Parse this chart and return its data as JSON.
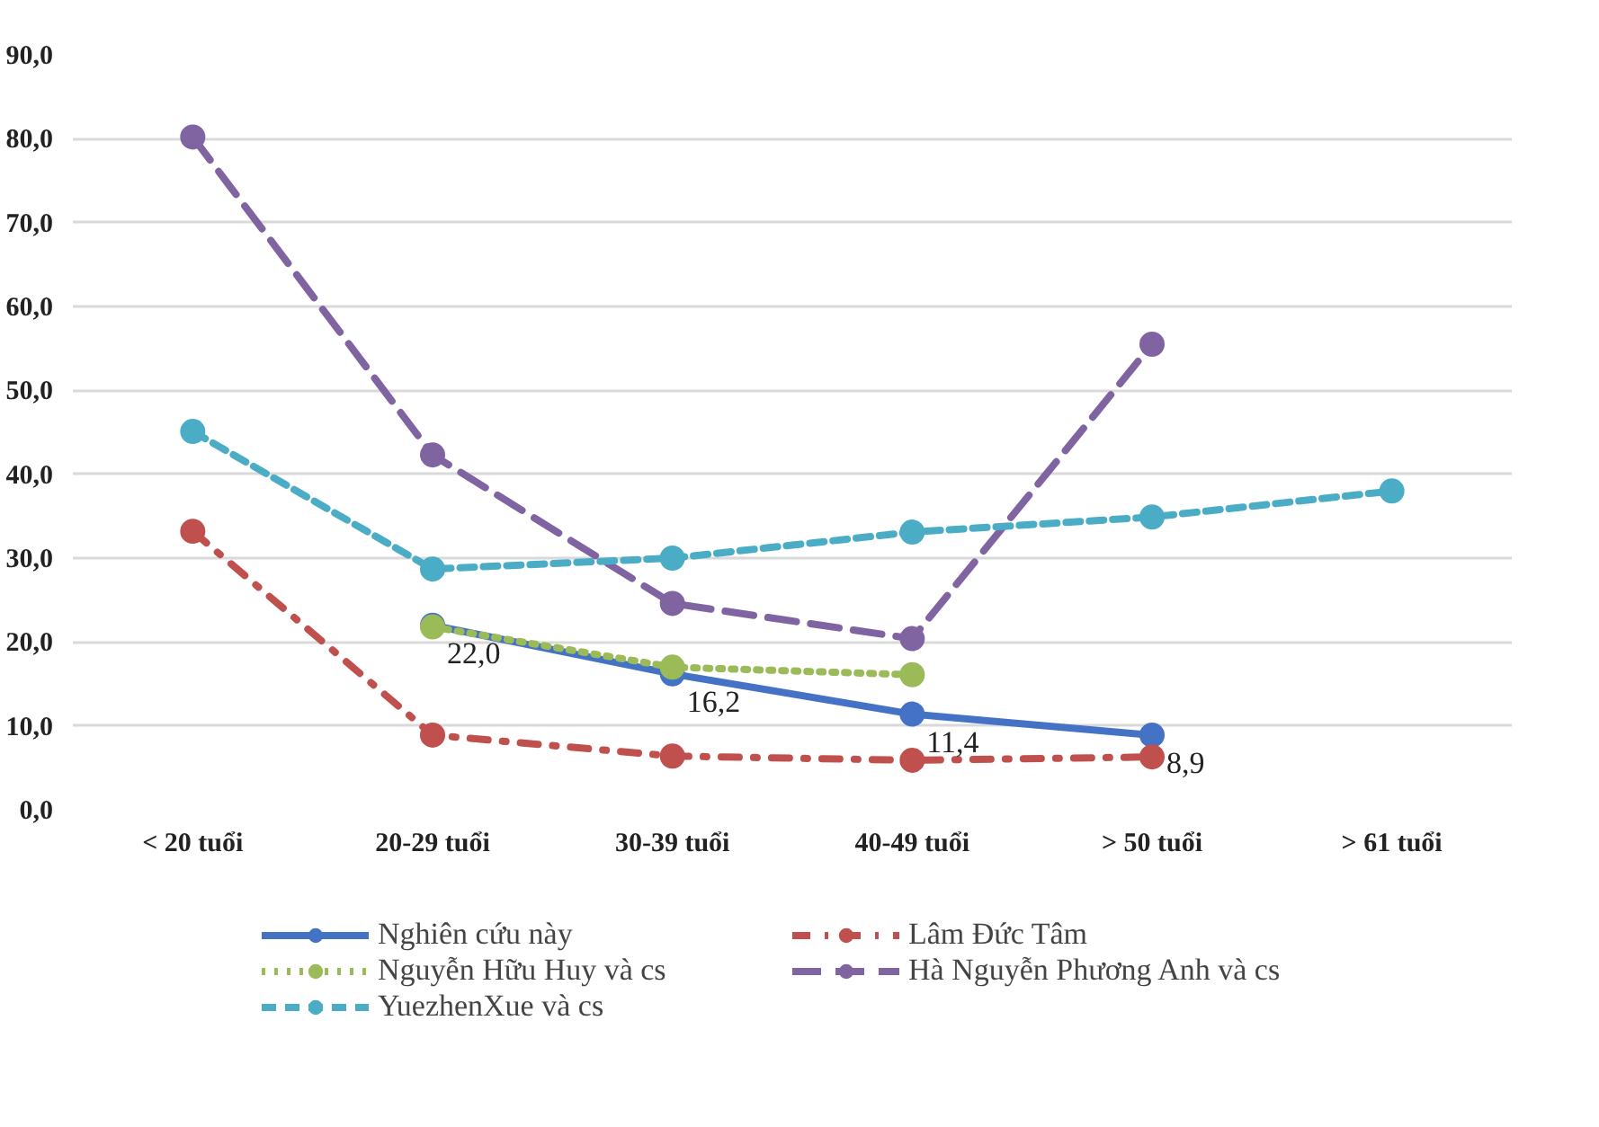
{
  "chart_data": {
    "type": "line",
    "categories": [
      "< 20 tuổi",
      "20-29 tuổi",
      "30-39 tuổi",
      "40-49 tuổi",
      "> 50 tuổi",
      "> 61 tuổi"
    ],
    "ylim": [
      0,
      90
    ],
    "yticks": [
      {
        "value": 0,
        "label": "0,0"
      },
      {
        "value": 10,
        "label": "10,0"
      },
      {
        "value": 20,
        "label": "20,0"
      },
      {
        "value": 30,
        "label": "30,0"
      },
      {
        "value": 40,
        "label": "40,0"
      },
      {
        "value": 50,
        "label": "50,0"
      },
      {
        "value": 60,
        "label": "60,0"
      },
      {
        "value": 70,
        "label": "70,0"
      },
      {
        "value": 80,
        "label": "80,0"
      },
      {
        "value": 90,
        "label": "90,0"
      }
    ],
    "grid": "y",
    "legend": "bottom",
    "marker": "circle",
    "series": [
      {
        "name": "Nghiên cứu này",
        "color": "#4472c4",
        "line_style": "solid",
        "values": [
          null,
          22.0,
          16.2,
          11.4,
          8.9,
          null
        ],
        "value_labels": [
          null,
          "22,0",
          "16,2",
          "11,4",
          "8,9",
          null
        ]
      },
      {
        "name": "Lâm Đức Tâm",
        "color": "#c0504d",
        "line_style": "dashdot",
        "values": [
          33.2,
          8.9,
          6.4,
          5.9,
          6.3,
          null
        ]
      },
      {
        "name": "Nguyễn Hữu Huy và cs",
        "color": "#9bbb59",
        "line_style": "dotted",
        "values": [
          null,
          21.8,
          17.0,
          16.1,
          null,
          null
        ]
      },
      {
        "name": "Hà Nguyễn Phương Anh và cs",
        "color": "#8064a2",
        "line_style": "longdash",
        "values": [
          80.2,
          42.3,
          24.6,
          20.4,
          55.5,
          null
        ]
      },
      {
        "name": "YuezhenXue và cs",
        "color": "#4bacc6",
        "line_style": "dashed",
        "values": [
          45.1,
          28.7,
          30.0,
          33.1,
          34.9,
          38.0
        ]
      }
    ]
  }
}
